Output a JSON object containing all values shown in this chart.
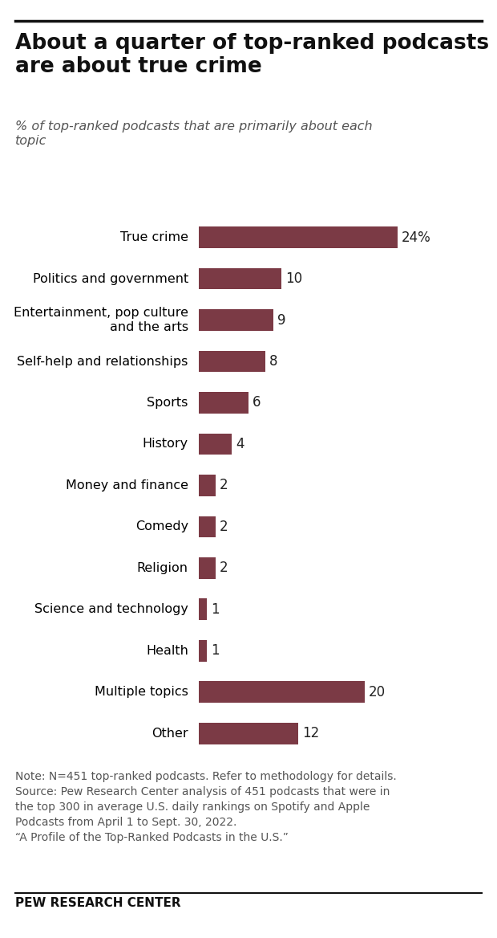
{
  "title": "About a quarter of top-ranked podcasts\nare about true crime",
  "subtitle": "% of top-ranked podcasts that are primarily about each\ntopic",
  "categories": [
    "True crime",
    "Politics and government",
    "Entertainment, pop culture\nand the arts",
    "Self-help and relationships",
    "Sports",
    "History",
    "Money and finance",
    "Comedy",
    "Religion",
    "Science and technology",
    "Health",
    "Multiple topics",
    "Other"
  ],
  "values": [
    24,
    10,
    9,
    8,
    6,
    4,
    2,
    2,
    2,
    1,
    1,
    20,
    12
  ],
  "value_labels": [
    "24%",
    "10",
    "9",
    "8",
    "6",
    "4",
    "2",
    "2",
    "2",
    "1",
    "1",
    "20",
    "12"
  ],
  "bar_color": "#7b3a45",
  "background_color": "#ffffff",
  "title_fontsize": 19,
  "subtitle_fontsize": 11.5,
  "label_fontsize": 11.5,
  "value_fontsize": 12,
  "note_text": "Note: N=451 top-ranked podcasts. Refer to methodology for details.\nSource: Pew Research Center analysis of 451 podcasts that were in\nthe top 300 in average U.S. daily rankings on Spotify and Apple\nPodcasts from April 1 to Sept. 30, 2022.\n“A Profile of the Top-Ranked Podcasts in the U.S.”",
  "footer_text": "PEW RESEARCH CENTER",
  "note_fontsize": 10,
  "footer_fontsize": 11,
  "xlim": [
    0,
    30
  ]
}
